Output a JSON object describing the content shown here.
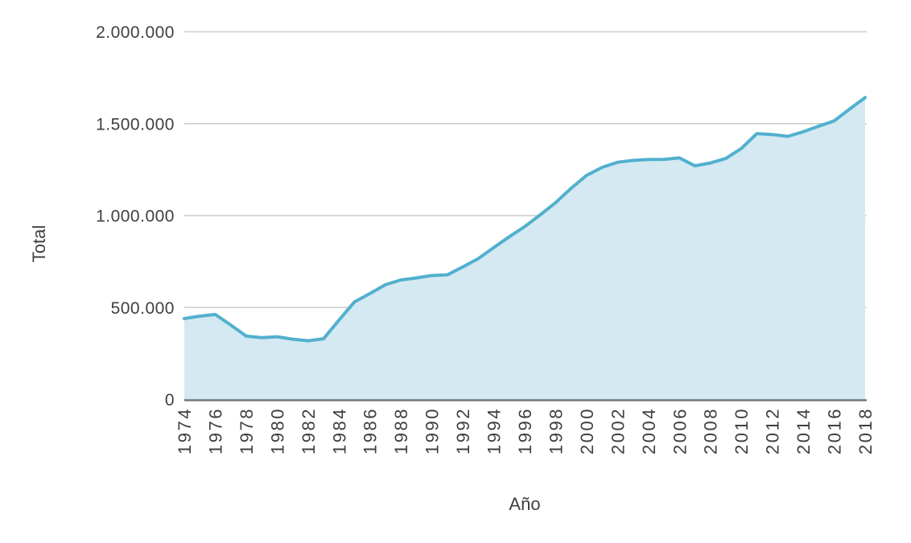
{
  "chart_data": {
    "type": "area",
    "title": "",
    "xlabel": "Año",
    "ylabel": "Total",
    "xlim": [
      1974,
      2018
    ],
    "ylim": [
      0,
      2000000
    ],
    "grid": true,
    "legend_position": "none",
    "x": [
      1974,
      1975,
      1976,
      1977,
      1978,
      1979,
      1980,
      1981,
      1982,
      1983,
      1984,
      1985,
      1986,
      1987,
      1988,
      1989,
      1990,
      1991,
      1992,
      1993,
      1994,
      1995,
      1996,
      1997,
      1998,
      1999,
      2000,
      2001,
      2002,
      2003,
      2004,
      2005,
      2006,
      2007,
      2008,
      2009,
      2010,
      2011,
      2012,
      2013,
      2014,
      2015,
      2016,
      2017,
      2018
    ],
    "values": [
      440000,
      453000,
      462000,
      405000,
      345000,
      336000,
      341000,
      328000,
      319000,
      330000,
      432000,
      531000,
      576000,
      624000,
      650000,
      661000,
      674000,
      678000,
      721000,
      766000,
      826000,
      885000,
      940000,
      1004000,
      1071000,
      1149000,
      1219000,
      1262000,
      1290000,
      1300000,
      1305000,
      1306000,
      1314000,
      1271000,
      1286000,
      1311000,
      1365000,
      1446000,
      1441000,
      1431000,
      1456000,
      1486000,
      1515000,
      1580000,
      1642000
    ],
    "x_ticks": [
      {
        "value": 1974,
        "label": "1974"
      },
      {
        "value": 1976,
        "label": "1976"
      },
      {
        "value": 1978,
        "label": "1978"
      },
      {
        "value": 1980,
        "label": "1980"
      },
      {
        "value": 1982,
        "label": "1982"
      },
      {
        "value": 1984,
        "label": "1984"
      },
      {
        "value": 1986,
        "label": "1986"
      },
      {
        "value": 1988,
        "label": "1988"
      },
      {
        "value": 1990,
        "label": "1990"
      },
      {
        "value": 1992,
        "label": "1992"
      },
      {
        "value": 1994,
        "label": "1994"
      },
      {
        "value": 1996,
        "label": "1996"
      },
      {
        "value": 1998,
        "label": "1998"
      },
      {
        "value": 2000,
        "label": "2000"
      },
      {
        "value": 2002,
        "label": "2002"
      },
      {
        "value": 2004,
        "label": "2004"
      },
      {
        "value": 2006,
        "label": "2006"
      },
      {
        "value": 2008,
        "label": "2008"
      },
      {
        "value": 2010,
        "label": "2010"
      },
      {
        "value": 2012,
        "label": "2012"
      },
      {
        "value": 2014,
        "label": "2014"
      },
      {
        "value": 2016,
        "label": "2016"
      },
      {
        "value": 2018,
        "label": "2018"
      }
    ],
    "y_ticks": [
      {
        "value": 0,
        "label": "0"
      },
      {
        "value": 500000,
        "label": "500.000"
      },
      {
        "value": 1000000,
        "label": "1.000.000"
      },
      {
        "value": 1500000,
        "label": "1.500.000"
      },
      {
        "value": 2000000,
        "label": "2.000.000"
      }
    ],
    "colors": {
      "line": "#52b0ce",
      "fill": "#d4e9f2",
      "grid": "#cccccc",
      "axis_line": "#70777c",
      "text": "#3f3f3f",
      "background": "#ffffff"
    }
  }
}
